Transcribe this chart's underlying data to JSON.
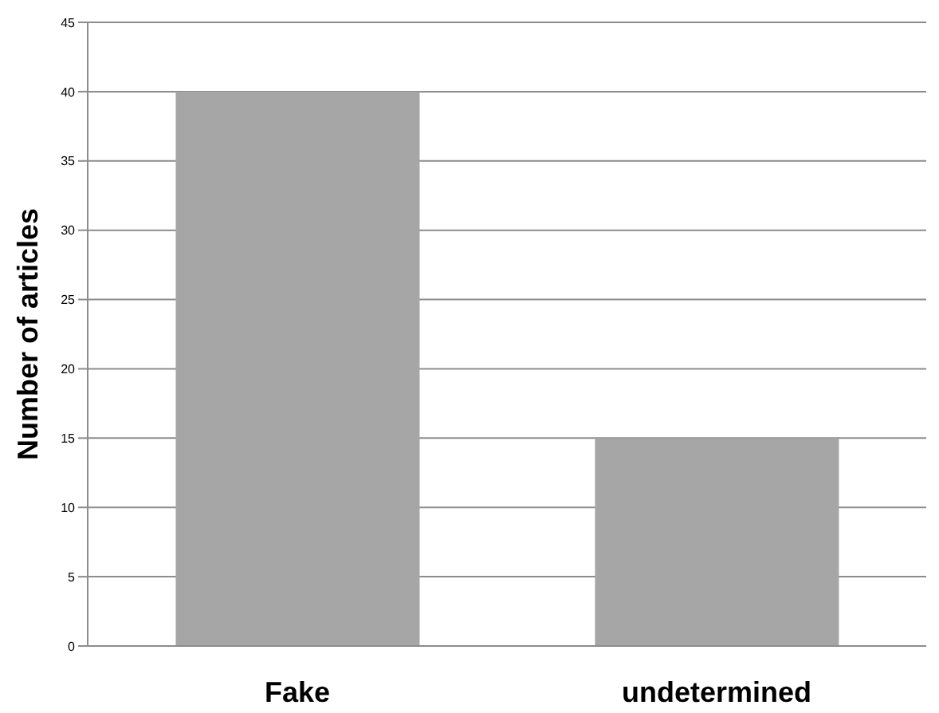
{
  "chart_data": {
    "type": "bar",
    "ylabel": "Number of articles",
    "categories": [
      "Fake",
      "undetermined"
    ],
    "values": [
      40,
      15
    ],
    "color": "#a6a6a6",
    "ylim": [
      0,
      45
    ],
    "yticks": [
      0,
      5,
      10,
      15,
      20,
      25,
      30,
      35,
      40,
      45
    ],
    "grid": "y"
  }
}
